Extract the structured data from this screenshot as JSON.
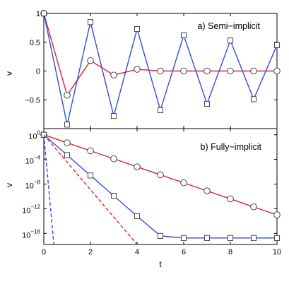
{
  "chart_data": [
    {
      "type": "line",
      "title": "a) Semi−implicit",
      "xlabel": "",
      "ylabel": "v",
      "xlim": [
        0,
        10
      ],
      "ylim": [
        -1,
        1
      ],
      "grid": false,
      "xticks": [
        0,
        2,
        4,
        6,
        8,
        10
      ],
      "yticks": [
        1,
        0.5,
        0,
        -0.5
      ],
      "ytick_labels": [
        "1",
        "0.5",
        "0",
        "−0.5"
      ],
      "series": [
        {
          "color": "#e8202a",
          "marker": "circle",
          "linestyle": "solid",
          "x": [
            0,
            1,
            2,
            3,
            4,
            5,
            6,
            7,
            8,
            9,
            10
          ],
          "y": [
            1,
            -0.42,
            0.18,
            -0.07,
            0.03,
            0.0,
            0.0,
            0.0,
            0.0,
            0.0,
            0.0
          ]
        },
        {
          "color": "#2c4fe0",
          "marker": "square",
          "linestyle": "solid",
          "x": [
            0,
            1,
            2,
            3,
            4,
            5,
            6,
            7,
            8,
            9,
            10
          ],
          "y": [
            1,
            -0.93,
            0.85,
            -0.78,
            0.73,
            -0.68,
            0.62,
            -0.57,
            0.53,
            -0.49,
            0.45
          ]
        }
      ]
    },
    {
      "type": "line",
      "title": "b) Fully−implicit",
      "xlabel": "t",
      "ylabel": "v",
      "xlim": [
        0,
        10
      ],
      "ylim_log10": [
        -17.8,
        1
      ],
      "yscale": "log",
      "grid": false,
      "xticks": [
        0,
        2,
        4,
        6,
        8,
        10
      ],
      "yticks_log10": [
        0,
        -4,
        -8,
        -12,
        -16
      ],
      "ytick_labels": [
        {
          "base": "10",
          "exp": "0"
        },
        {
          "base": "10",
          "exp": "−4"
        },
        {
          "base": "10",
          "exp": "−8"
        },
        {
          "base": "10",
          "exp": "−12"
        },
        {
          "base": "10",
          "exp": "−16"
        }
      ],
      "series": [
        {
          "color": "#e8202a",
          "marker": "circle",
          "linestyle": "solid",
          "x": [
            0,
            1,
            2,
            3,
            4,
            5,
            6,
            7,
            8,
            9,
            10
          ],
          "y_log10": [
            0,
            -1.3,
            -2.6,
            -3.9,
            -5.2,
            -6.5,
            -7.8,
            -9.1,
            -10.4,
            -11.7,
            -13.0
          ]
        },
        {
          "color": "#2c4fe0",
          "marker": "square",
          "linestyle": "solid",
          "x": [
            0,
            1,
            2,
            3,
            4,
            5,
            6,
            7,
            8,
            9,
            10
          ],
          "y_log10": [
            0,
            -3.3,
            -6.6,
            -9.9,
            -13.2,
            -16.4,
            -16.75,
            -16.75,
            -16.75,
            -16.75,
            -16.75
          ]
        },
        {
          "color": "#e8202a",
          "marker": "none",
          "linestyle": "dashed",
          "x": [
            0,
            4
          ],
          "y_log10": [
            0,
            -17.8
          ]
        },
        {
          "color": "#2c4fe0",
          "marker": "none",
          "linestyle": "dashed",
          "x": [
            0,
            0.43
          ],
          "y_log10": [
            0,
            -17.8
          ]
        }
      ]
    }
  ]
}
